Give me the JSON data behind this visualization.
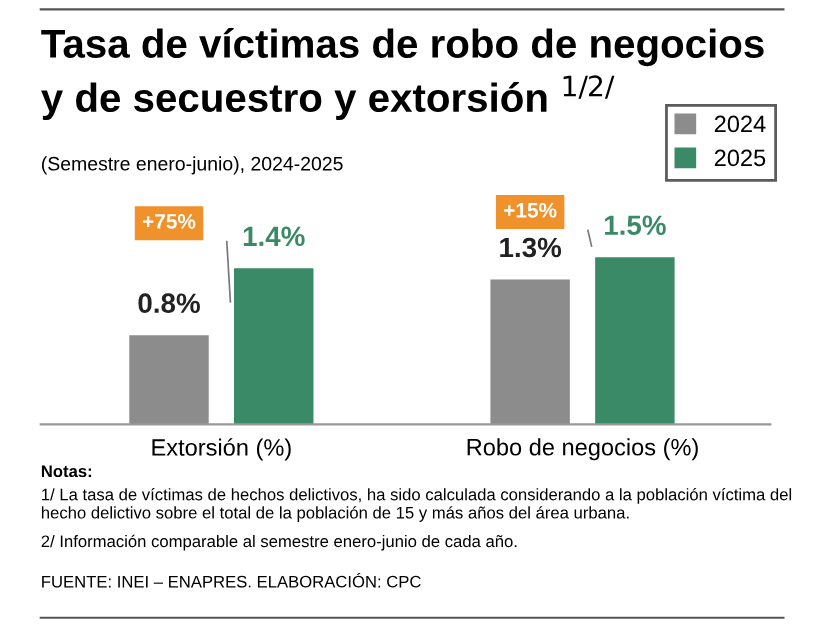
{
  "chart_data": {
    "type": "bar",
    "title": "Tasa de víctimas de robo de negocios\ny de secuestro y extorsión $^{1/2/}$",
    "subtitle": "(Semestre enero-junio), 2024-2025",
    "categories": [
      "Extorsión (%)",
      "Robo de negocios (%)"
    ],
    "series": [
      {
        "name": "2024",
        "color": "#8c8c8c",
        "values": [
          0.8,
          1.3
        ],
        "value_labels": [
          "0.8%",
          "1.3%"
        ]
      },
      {
        "name": "2025",
        "color": "#3a8a67",
        "values": [
          1.4,
          1.5
        ],
        "value_labels": [
          "1.4%",
          "1.5%"
        ]
      }
    ],
    "legend": "top right",
    "annotations": [
      "+75%",
      "+15%",
      "Notas:",
      "1/ La tasa de víctimas de hechos delictivos, ha sido calculada considerando a la población víctima del hecho delictivo sobre el total de la población de 15 y más años del área urbana.",
      "2/ Información comparable al semestre enero-junio de cada año.",
      "FUENTE: INEI – ENAPRES. ELABORACIÓN: CPC"
    ]
  }
}
